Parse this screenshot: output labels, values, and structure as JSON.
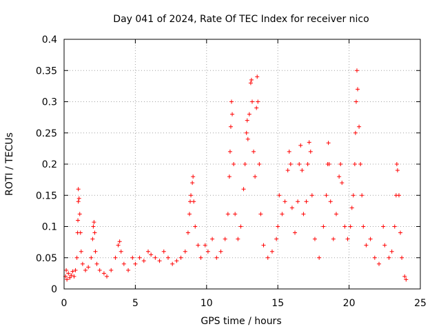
{
  "chart_data": {
    "type": "scatter",
    "title": "Day 041 of 2024, Rate Of TEC Index for receiver nico",
    "xlabel": "GPS time / hours",
    "ylabel": "ROTI / TECUs",
    "xlim": [
      0,
      25
    ],
    "ylim": [
      0,
      0.4
    ],
    "xticks": [
      "0",
      "5",
      "10",
      "15",
      "20",
      "25"
    ],
    "yticks": [
      "0",
      "0.05",
      "0.1",
      "0.15",
      "0.2",
      "0.25",
      "0.3",
      "0.35",
      "0.4"
    ],
    "grid": true,
    "marker": "+",
    "color": "#ff0000",
    "series": [
      {
        "name": "ROTI",
        "points": [
          [
            0.1,
            0.02
          ],
          [
            0.15,
            0.03
          ],
          [
            0.2,
            0.015
          ],
          [
            0.3,
            0.025
          ],
          [
            0.4,
            0.018
          ],
          [
            0.5,
            0.022
          ],
          [
            0.6,
            0.028
          ],
          [
            0.7,
            0.02
          ],
          [
            0.8,
            0.03
          ],
          [
            0.9,
            0.05
          ],
          [
            0.95,
            0.09
          ],
          [
            0.97,
            0.11
          ],
          [
            1.0,
            0.14
          ],
          [
            1.0,
            0.16
          ],
          [
            1.05,
            0.145
          ],
          [
            1.1,
            0.12
          ],
          [
            1.15,
            0.09
          ],
          [
            1.2,
            0.06
          ],
          [
            1.3,
            0.04
          ],
          [
            1.5,
            0.03
          ],
          [
            1.7,
            0.035
          ],
          [
            1.9,
            0.05
          ],
          [
            2.0,
            0.08
          ],
          [
            2.05,
            0.1
          ],
          [
            2.1,
            0.107
          ],
          [
            2.15,
            0.09
          ],
          [
            2.2,
            0.06
          ],
          [
            2.3,
            0.04
          ],
          [
            2.5,
            0.03
          ],
          [
            2.8,
            0.025
          ],
          [
            3.0,
            0.02
          ],
          [
            3.3,
            0.03
          ],
          [
            3.6,
            0.05
          ],
          [
            3.8,
            0.07
          ],
          [
            3.9,
            0.076
          ],
          [
            4.0,
            0.06
          ],
          [
            4.2,
            0.04
          ],
          [
            4.5,
            0.03
          ],
          [
            4.8,
            0.05
          ],
          [
            5.0,
            0.04
          ],
          [
            5.3,
            0.05
          ],
          [
            5.6,
            0.045
          ],
          [
            5.9,
            0.06
          ],
          [
            6.1,
            0.055
          ],
          [
            6.4,
            0.05
          ],
          [
            6.7,
            0.045
          ],
          [
            7.0,
            0.06
          ],
          [
            7.3,
            0.05
          ],
          [
            7.6,
            0.04
          ],
          [
            7.9,
            0.045
          ],
          [
            8.2,
            0.05
          ],
          [
            8.5,
            0.06
          ],
          [
            8.7,
            0.09
          ],
          [
            8.8,
            0.12
          ],
          [
            8.85,
            0.14
          ],
          [
            8.9,
            0.15
          ],
          [
            9.0,
            0.17
          ],
          [
            9.05,
            0.18
          ],
          [
            9.1,
            0.14
          ],
          [
            9.2,
            0.1
          ],
          [
            9.4,
            0.07
          ],
          [
            9.6,
            0.05
          ],
          [
            9.9,
            0.07
          ],
          [
            10.1,
            0.06
          ],
          [
            10.4,
            0.08
          ],
          [
            10.7,
            0.05
          ],
          [
            11.0,
            0.06
          ],
          [
            11.3,
            0.08
          ],
          [
            11.5,
            0.12
          ],
          [
            11.6,
            0.18
          ],
          [
            11.65,
            0.22
          ],
          [
            11.7,
            0.26
          ],
          [
            11.75,
            0.3
          ],
          [
            11.8,
            0.28
          ],
          [
            11.9,
            0.2
          ],
          [
            12.0,
            0.12
          ],
          [
            12.2,
            0.08
          ],
          [
            12.4,
            0.1
          ],
          [
            12.6,
            0.16
          ],
          [
            12.7,
            0.2
          ],
          [
            12.8,
            0.25
          ],
          [
            12.85,
            0.27
          ],
          [
            12.9,
            0.24
          ],
          [
            13.0,
            0.28
          ],
          [
            13.1,
            0.33
          ],
          [
            13.15,
            0.335
          ],
          [
            13.2,
            0.3
          ],
          [
            13.3,
            0.22
          ],
          [
            13.4,
            0.18
          ],
          [
            13.5,
            0.29
          ],
          [
            13.55,
            0.34
          ],
          [
            13.6,
            0.3
          ],
          [
            13.7,
            0.2
          ],
          [
            13.8,
            0.12
          ],
          [
            14.0,
            0.07
          ],
          [
            14.3,
            0.05
          ],
          [
            14.6,
            0.06
          ],
          [
            14.9,
            0.08
          ],
          [
            15.0,
            0.1
          ],
          [
            15.1,
            0.15
          ],
          [
            15.3,
            0.12
          ],
          [
            15.5,
            0.14
          ],
          [
            15.7,
            0.19
          ],
          [
            15.8,
            0.22
          ],
          [
            15.9,
            0.2
          ],
          [
            16.0,
            0.13
          ],
          [
            16.2,
            0.09
          ],
          [
            16.4,
            0.14
          ],
          [
            16.5,
            0.2
          ],
          [
            16.6,
            0.23
          ],
          [
            16.7,
            0.19
          ],
          [
            16.8,
            0.12
          ],
          [
            17.0,
            0.14
          ],
          [
            17.1,
            0.2
          ],
          [
            17.2,
            0.235
          ],
          [
            17.3,
            0.22
          ],
          [
            17.4,
            0.15
          ],
          [
            17.6,
            0.08
          ],
          [
            17.9,
            0.05
          ],
          [
            18.2,
            0.1
          ],
          [
            18.4,
            0.15
          ],
          [
            18.5,
            0.2
          ],
          [
            18.55,
            0.234
          ],
          [
            18.6,
            0.2
          ],
          [
            18.7,
            0.14
          ],
          [
            18.9,
            0.08
          ],
          [
            19.1,
            0.12
          ],
          [
            19.3,
            0.18
          ],
          [
            19.4,
            0.2
          ],
          [
            19.5,
            0.17
          ],
          [
            19.7,
            0.1
          ],
          [
            19.9,
            0.08
          ],
          [
            20.1,
            0.1
          ],
          [
            20.2,
            0.13
          ],
          [
            20.3,
            0.15
          ],
          [
            20.4,
            0.2
          ],
          [
            20.45,
            0.25
          ],
          [
            20.5,
            0.3
          ],
          [
            20.55,
            0.35
          ],
          [
            20.6,
            0.32
          ],
          [
            20.7,
            0.26
          ],
          [
            20.8,
            0.2
          ],
          [
            20.9,
            0.15
          ],
          [
            21.0,
            0.1
          ],
          [
            21.2,
            0.07
          ],
          [
            21.5,
            0.08
          ],
          [
            21.8,
            0.05
          ],
          [
            22.1,
            0.04
          ],
          [
            22.4,
            0.1
          ],
          [
            22.5,
            0.07
          ],
          [
            22.8,
            0.05
          ],
          [
            23.0,
            0.06
          ],
          [
            23.2,
            0.1
          ],
          [
            23.3,
            0.15
          ],
          [
            23.35,
            0.2
          ],
          [
            23.4,
            0.19
          ],
          [
            23.5,
            0.15
          ],
          [
            23.6,
            0.09
          ],
          [
            23.7,
            0.05
          ],
          [
            23.9,
            0.02
          ],
          [
            24.0,
            0.015
          ]
        ]
      }
    ]
  }
}
